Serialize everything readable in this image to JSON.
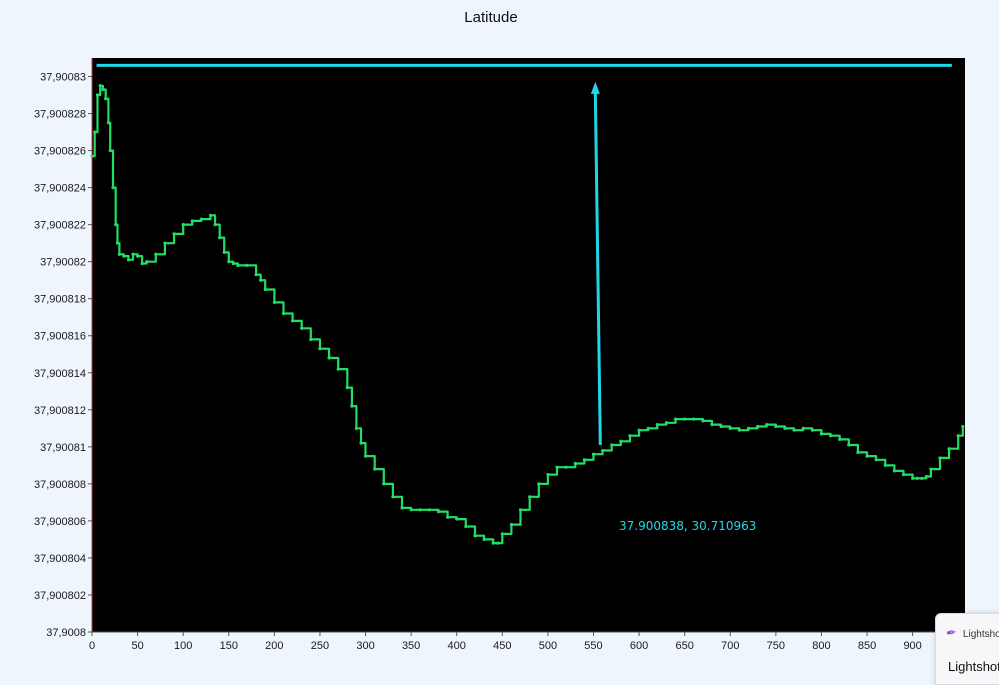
{
  "chart_data": {
    "type": "line",
    "title": "Latitude",
    "xlabel": "",
    "ylabel": "",
    "xlim": [
      0,
      955
    ],
    "ylim": [
      37.9008,
      37.900831
    ],
    "x_ticks": [
      0,
      50,
      100,
      150,
      200,
      250,
      300,
      350,
      400,
      450,
      500,
      550,
      600,
      650,
      700,
      750,
      800,
      850,
      900
    ],
    "y_ticks": [
      37.9008,
      37.900802,
      37.900804,
      37.900806,
      37.900808,
      37.90081,
      37.900812,
      37.900814,
      37.900816,
      37.900818,
      37.90082,
      37.900822,
      37.900824,
      37.900826,
      37.900828,
      37.90083
    ],
    "y_tick_labels": [
      "37,9008",
      "37,900802",
      "37,900804",
      "37,900806",
      "37,900808",
      "37,90081",
      "37,900812",
      "37,900814",
      "37,900816",
      "37,900818",
      "37,90082",
      "37,900822",
      "37,900824",
      "37,900826",
      "37,900828",
      "37,90083"
    ],
    "grid": false,
    "background": "#000000",
    "series": [
      {
        "color": "#22dd66",
        "x": [
          0,
          3,
          6,
          9,
          12,
          15,
          18,
          20,
          23,
          26,
          28,
          30,
          35,
          40,
          45,
          50,
          55,
          60,
          70,
          80,
          90,
          100,
          110,
          120,
          130,
          135,
          140,
          145,
          150,
          155,
          160,
          170,
          180,
          185,
          190,
          200,
          210,
          220,
          230,
          240,
          250,
          260,
          270,
          280,
          285,
          290,
          295,
          300,
          310,
          320,
          330,
          340,
          350,
          360,
          370,
          380,
          390,
          400,
          410,
          420,
          430,
          440,
          445,
          450,
          460,
          470,
          480,
          490,
          500,
          510,
          520,
          530,
          540,
          550,
          560,
          570,
          580,
          590,
          600,
          610,
          620,
          630,
          640,
          650,
          660,
          670,
          680,
          690,
          700,
          710,
          720,
          730,
          740,
          750,
          760,
          770,
          780,
          790,
          800,
          810,
          820,
          830,
          840,
          850,
          860,
          870,
          880,
          890,
          900,
          905,
          910,
          915,
          920,
          930,
          940,
          950,
          955
        ],
        "y": [
          37.9008257,
          37.900827,
          37.900829,
          37.9008295,
          37.9008293,
          37.9008288,
          37.9008275,
          37.900826,
          37.900824,
          37.900822,
          37.900821,
          37.9008204,
          37.9008203,
          37.9008201,
          37.9008204,
          37.9008203,
          37.9008199,
          37.90082,
          37.9008204,
          37.900821,
          37.9008215,
          37.900822,
          37.9008222,
          37.9008223,
          37.9008225,
          37.900822,
          37.9008213,
          37.9008205,
          37.90082,
          37.9008199,
          37.9008198,
          37.9008198,
          37.9008193,
          37.900819,
          37.9008185,
          37.9008178,
          37.9008172,
          37.9008168,
          37.9008164,
          37.9008158,
          37.9008153,
          37.9008148,
          37.9008142,
          37.9008132,
          37.9008122,
          37.900811,
          37.9008102,
          37.9008095,
          37.9008088,
          37.900808,
          37.9008073,
          37.9008067,
          37.9008066,
          37.9008066,
          37.9008066,
          37.9008065,
          37.9008062,
          37.9008061,
          37.9008057,
          37.9008052,
          37.900805,
          37.9008048,
          37.9008048,
          37.9008053,
          37.9008058,
          37.9008066,
          37.9008073,
          37.900808,
          37.9008085,
          37.9008089,
          37.9008089,
          37.9008091,
          37.9008093,
          37.9008096,
          37.9008098,
          37.9008101,
          37.9008103,
          37.9008106,
          37.9008109,
          37.900811,
          37.9008112,
          37.9008113,
          37.9008115,
          37.9008115,
          37.9008115,
          37.9008114,
          37.9008112,
          37.9008111,
          37.900811,
          37.9008109,
          37.900811,
          37.9008111,
          37.9008112,
          37.9008111,
          37.900811,
          37.9008109,
          37.900811,
          37.9008109,
          37.9008107,
          37.9008106,
          37.9008104,
          37.9008101,
          37.9008097,
          37.9008095,
          37.9008093,
          37.900809,
          37.9008087,
          37.9008085,
          37.9008083,
          37.9008083,
          37.9008083,
          37.9008084,
          37.9008088,
          37.9008094,
          37.9008099,
          37.9008106,
          37.9008111
        ]
      }
    ],
    "annotations": {
      "top_line_y": 37.9008306,
      "arrow": {
        "x": 552,
        "y_from": 37.9008101,
        "y_to": 37.9008296
      },
      "label": {
        "text": "37.900838, 30.710963",
        "x": 578,
        "y": 37.9008055
      }
    },
    "annotation_color": "#22d6e6"
  },
  "notification": {
    "icon": "feather-pen-icon",
    "app_label": "Lightshot",
    "title": "Lightshot"
  }
}
